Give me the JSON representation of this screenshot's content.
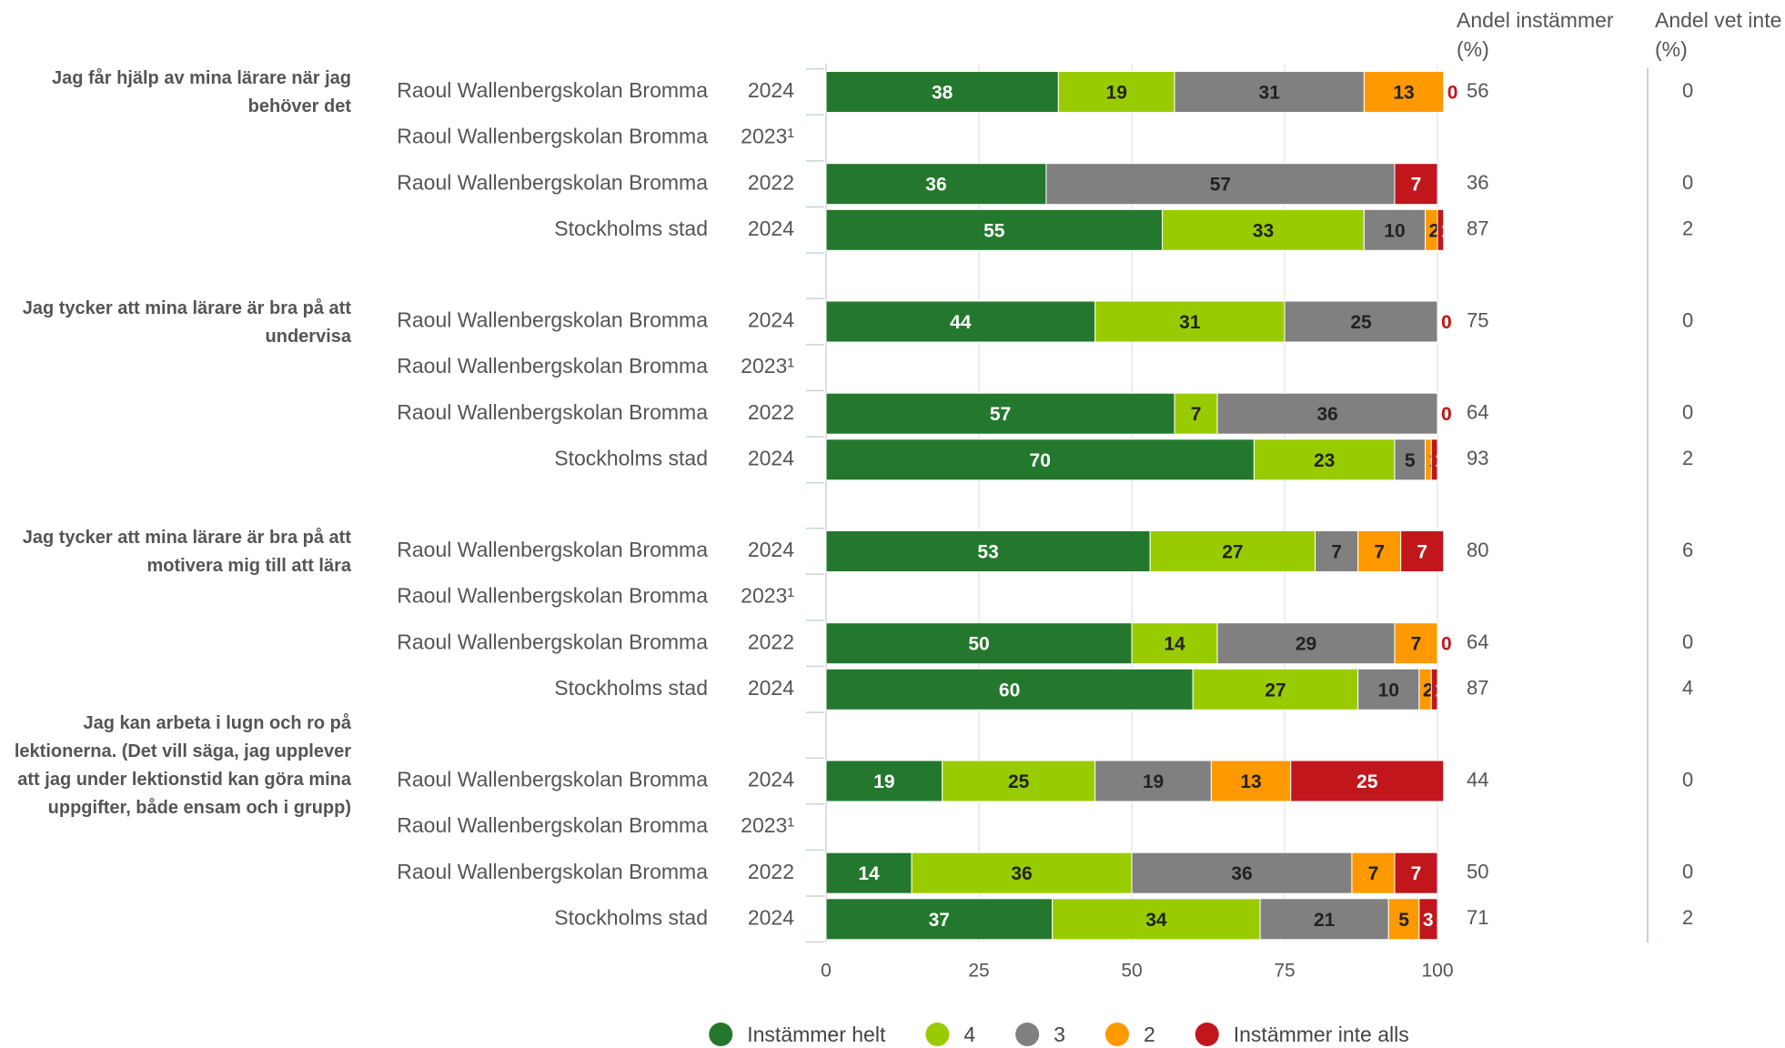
{
  "chart_data": {
    "type": "bar",
    "orientation": "horizontal",
    "stacked": true,
    "xlim": [
      0,
      100
    ],
    "xticks": [
      0,
      25,
      50,
      75,
      100
    ],
    "grid": true,
    "legend": "bottom",
    "columns": [
      "Andel instämmer (%)",
      "Andel vet inte (%)"
    ],
    "series": [
      {
        "name": "Instämmer helt",
        "color": "#23782d",
        "label_color": "#ffffff"
      },
      {
        "name": "4",
        "color": "#99cc00",
        "label_color": "#222222"
      },
      {
        "name": "3",
        "color": "#808080",
        "label_color": "#222222"
      },
      {
        "name": "2",
        "color": "#ff9900",
        "label_color": "#222222"
      },
      {
        "name": "Instämmer inte alls",
        "color": "#c0161c",
        "label_color": "#ffffff"
      }
    ],
    "groups": [
      {
        "question": "Jag får hjälp av mina lärare när jag behöver det",
        "rows": [
          {
            "unit": "Raoul Wallenbergskolan Bromma",
            "year": "2024",
            "values": [
              38,
              19,
              31,
              13,
              0
            ],
            "instammer": 56,
            "vet_inte": 0
          },
          {
            "unit": "Raoul Wallenbergskolan Bromma",
            "year": "2023¹",
            "values": null,
            "instammer": null,
            "vet_inte": null
          },
          {
            "unit": "Raoul Wallenbergskolan Bromma",
            "year": "2022",
            "values": [
              36,
              0,
              57,
              0,
              7
            ],
            "instammer": 36,
            "vet_inte": 0
          },
          {
            "unit": "Stockholms stad",
            "year": "2024",
            "values": [
              55,
              33,
              10,
              2,
              1
            ],
            "instammer": 87,
            "vet_inte": 2
          }
        ]
      },
      {
        "question": "Jag tycker att mina lärare är bra på att undervisa",
        "rows": [
          {
            "unit": "Raoul Wallenbergskolan Bromma",
            "year": "2024",
            "values": [
              44,
              31,
              25,
              0,
              0
            ],
            "instammer": 75,
            "vet_inte": 0
          },
          {
            "unit": "Raoul Wallenbergskolan Bromma",
            "year": "2023¹",
            "values": null,
            "instammer": null,
            "vet_inte": null
          },
          {
            "unit": "Raoul Wallenbergskolan Bromma",
            "year": "2022",
            "values": [
              57,
              7,
              36,
              0,
              0
            ],
            "instammer": 64,
            "vet_inte": 0
          },
          {
            "unit": "Stockholms stad",
            "year": "2024",
            "values": [
              70,
              23,
              5,
              1,
              1
            ],
            "instammer": 93,
            "vet_inte": 2
          }
        ]
      },
      {
        "question": "Jag tycker att mina lärare är bra på att motivera mig till att lära",
        "rows": [
          {
            "unit": "Raoul Wallenbergskolan Bromma",
            "year": "2024",
            "values": [
              53,
              27,
              7,
              7,
              7
            ],
            "instammer": 80,
            "vet_inte": 6
          },
          {
            "unit": "Raoul Wallenbergskolan Bromma",
            "year": "2023¹",
            "values": null,
            "instammer": null,
            "vet_inte": null
          },
          {
            "unit": "Raoul Wallenbergskolan Bromma",
            "year": "2022",
            "values": [
              50,
              14,
              29,
              7,
              0
            ],
            "instammer": 64,
            "vet_inte": 0
          },
          {
            "unit": "Stockholms stad",
            "year": "2024",
            "values": [
              60,
              27,
              10,
              2,
              1
            ],
            "instammer": 87,
            "vet_inte": 4
          }
        ]
      },
      {
        "question": "Jag kan arbeta i lugn och ro på lektionerna. (Det vill säga, jag upplever att jag under lektionstid kan göra mina uppgifter, både ensam och i grupp)",
        "rows": [
          {
            "unit": "Raoul Wallenbergskolan Bromma",
            "year": "2024",
            "values": [
              19,
              25,
              19,
              13,
              25
            ],
            "instammer": 44,
            "vet_inte": 0
          },
          {
            "unit": "Raoul Wallenbergskolan Bromma",
            "year": "2023¹",
            "values": null,
            "instammer": null,
            "vet_inte": null
          },
          {
            "unit": "Raoul Wallenbergskolan Bromma",
            "year": "2022",
            "values": [
              14,
              36,
              36,
              7,
              7
            ],
            "instammer": 50,
            "vet_inte": 0
          },
          {
            "unit": "Stockholms stad",
            "year": "2024",
            "values": [
              37,
              34,
              21,
              5,
              3
            ],
            "instammer": 71,
            "vet_inte": 2
          }
        ]
      }
    ]
  }
}
